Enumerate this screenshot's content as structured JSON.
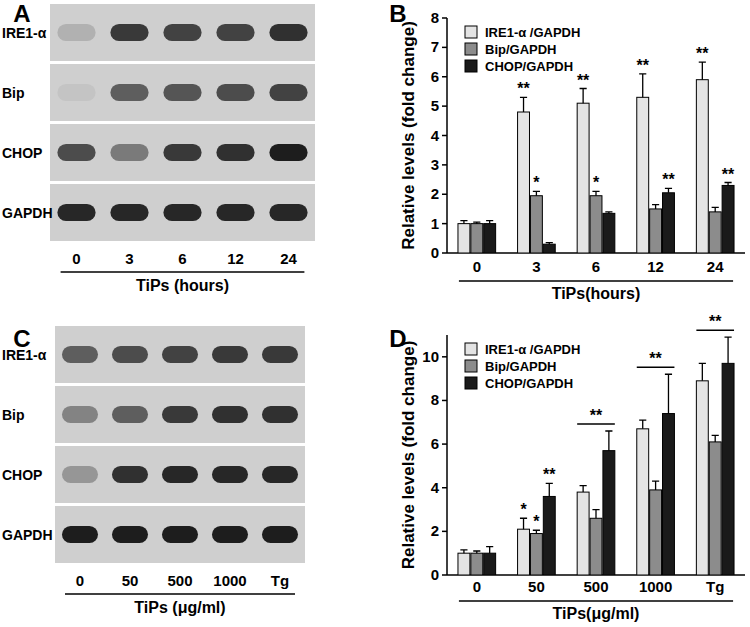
{
  "chart_data": [
    {
      "type": "blot",
      "title": "A",
      "x_label": "TiPs (hours)",
      "categories": [
        "0",
        "3",
        "6",
        "12",
        "24"
      ],
      "series": [
        {
          "name": "IRE1-α",
          "values": [
            0.15,
            0.8,
            0.75,
            0.75,
            0.85
          ]
        },
        {
          "name": "Bip",
          "values": [
            0.05,
            0.6,
            0.65,
            0.7,
            0.75
          ]
        },
        {
          "name": "CHOP",
          "values": [
            0.7,
            0.45,
            0.8,
            0.85,
            0.95
          ]
        },
        {
          "name": "GAPDH",
          "values": [
            0.9,
            0.9,
            0.9,
            0.9,
            0.9
          ]
        }
      ]
    },
    {
      "type": "bar",
      "title": "B",
      "y_label": "Relative levels (fold change)",
      "x_label": "TiPs(hours)",
      "categories": [
        "0",
        "3",
        "6",
        "12",
        "24"
      ],
      "ylim": [
        0,
        8
      ],
      "yticks": [
        0,
        1,
        2,
        3,
        4,
        5,
        6,
        7,
        8
      ],
      "legend": "upper left",
      "series": [
        {
          "name": "IRE1-α /GAPDH",
          "color": "#e4e4e4",
          "values": [
            1,
            4.8,
            5.1,
            5.3,
            5.9
          ],
          "errors": [
            0.1,
            0.5,
            0.5,
            0.8,
            0.6
          ],
          "significance": [
            null,
            "**",
            "**",
            "**",
            "**"
          ]
        },
        {
          "name": "Bip/GAPDH",
          "color": "#8c8c8c",
          "values": [
            1,
            1.95,
            1.95,
            1.5,
            1.4
          ],
          "errors": [
            0.05,
            0.15,
            0.15,
            0.15,
            0.15
          ],
          "significance": [
            null,
            "*",
            "*",
            null,
            null
          ]
        },
        {
          "name": "CHOP/GAPDH",
          "color": "#1a1a1a",
          "values": [
            1,
            0.3,
            1.35,
            2.05,
            2.3
          ],
          "errors": [
            0.1,
            0.05,
            0.05,
            0.15,
            0.1
          ],
          "significance": [
            null,
            null,
            null,
            "**",
            "**"
          ]
        }
      ]
    },
    {
      "type": "blot",
      "title": "C",
      "x_label": "TiPs (μg/ml)",
      "categories": [
        "0",
        "50",
        "500",
        "1000",
        "Tg"
      ],
      "series": [
        {
          "name": "IRE1-α",
          "values": [
            0.6,
            0.7,
            0.75,
            0.8,
            0.8
          ]
        },
        {
          "name": "Bip",
          "values": [
            0.4,
            0.6,
            0.8,
            0.85,
            0.85
          ]
        },
        {
          "name": "CHOP",
          "values": [
            0.3,
            0.85,
            0.9,
            0.9,
            0.9
          ]
        },
        {
          "name": "GAPDH",
          "values": [
            0.95,
            0.95,
            0.95,
            0.95,
            0.95
          ]
        }
      ]
    },
    {
      "type": "bar",
      "title": "D",
      "y_label": "Relative levels (fold change)",
      "x_label": "TiPs(μg/ml)",
      "categories": [
        "0",
        "50",
        "500",
        "1000",
        "Tg"
      ],
      "ylim": [
        0,
        11
      ],
      "yticks": [
        0,
        2,
        4,
        6,
        8,
        10
      ],
      "legend": "upper left",
      "group_significance": [
        null,
        null,
        "**",
        "**",
        "**"
      ],
      "series": [
        {
          "name": "IRE1-α /GAPDH",
          "color": "#e4e4e4",
          "values": [
            1,
            2.1,
            3.8,
            6.7,
            8.9
          ],
          "errors": [
            0.15,
            0.5,
            0.3,
            0.4,
            0.8
          ],
          "significance": [
            null,
            "*",
            null,
            null,
            null
          ]
        },
        {
          "name": "Bip/GAPDH",
          "color": "#8c8c8c",
          "values": [
            1,
            1.9,
            2.6,
            3.9,
            6.1
          ],
          "errors": [
            0.1,
            0.15,
            0.4,
            0.4,
            0.3
          ],
          "significance": [
            null,
            "*",
            null,
            null,
            null
          ]
        },
        {
          "name": "CHOP/GAPDH",
          "color": "#1a1a1a",
          "values": [
            1,
            3.6,
            5.7,
            7.4,
            9.7
          ],
          "errors": [
            0.3,
            0.6,
            0.9,
            1.8,
            1.2
          ],
          "significance": [
            null,
            "**",
            null,
            null,
            null
          ]
        }
      ]
    }
  ]
}
